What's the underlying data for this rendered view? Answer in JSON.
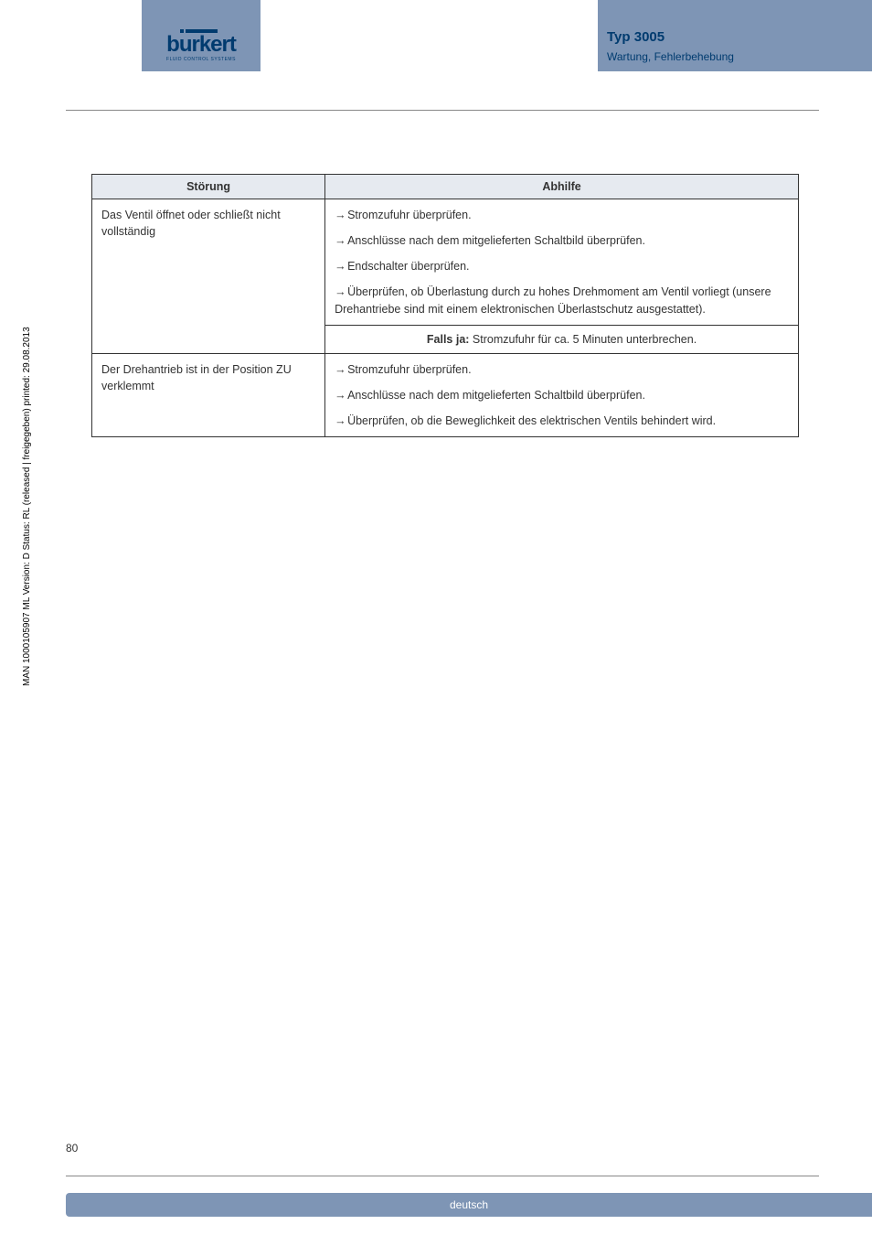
{
  "header": {
    "logo_text": "burkert",
    "logo_sub": "FLUID CONTROL SYSTEMS",
    "type_title": "Typ 3005",
    "subtitle": "Wartung, Fehlerbehebung"
  },
  "table": {
    "col1_header": "Störung",
    "col2_header": "Abhilfe",
    "rows": [
      {
        "fault": "Das Ventil öffnet oder schließt nicht vollständig",
        "remedies": [
          "Stromzufuhr überprüfen.",
          "Anschlüsse nach dem mitgelieferten Schaltbild überprüfen.",
          "Endschalter überprüfen.",
          "Überprüfen, ob Überlastung durch zu hohes Drehmoment am Ventil vorliegt (unsere Drehantriebe sind mit einem elektronischen Überlastschutz ausgestattet)."
        ],
        "falls_label": "Falls ja:",
        "falls_text": " Stromzufuhr für ca. 5 Minuten unterbrechen."
      },
      {
        "fault": "Der Drehantrieb ist in der Position ZU verklemmt",
        "remedies": [
          "Stromzufuhr überprüfen.",
          "Anschlüsse nach dem mitgelieferten Schaltbild überprüfen.",
          "Überprüfen, ob die Beweglichkeit des elektrischen Ventils behindert wird."
        ]
      }
    ]
  },
  "sidebar": "MAN 1000105907 ML Version: D Status: RL (released | freigegeben) printed: 29.08.2013",
  "page_number": "80",
  "footer": "deutsch",
  "colors": {
    "bar": "#7e95b5",
    "header_bg": "#e6eaf0",
    "text": "#333333",
    "brand": "#003b6f"
  }
}
